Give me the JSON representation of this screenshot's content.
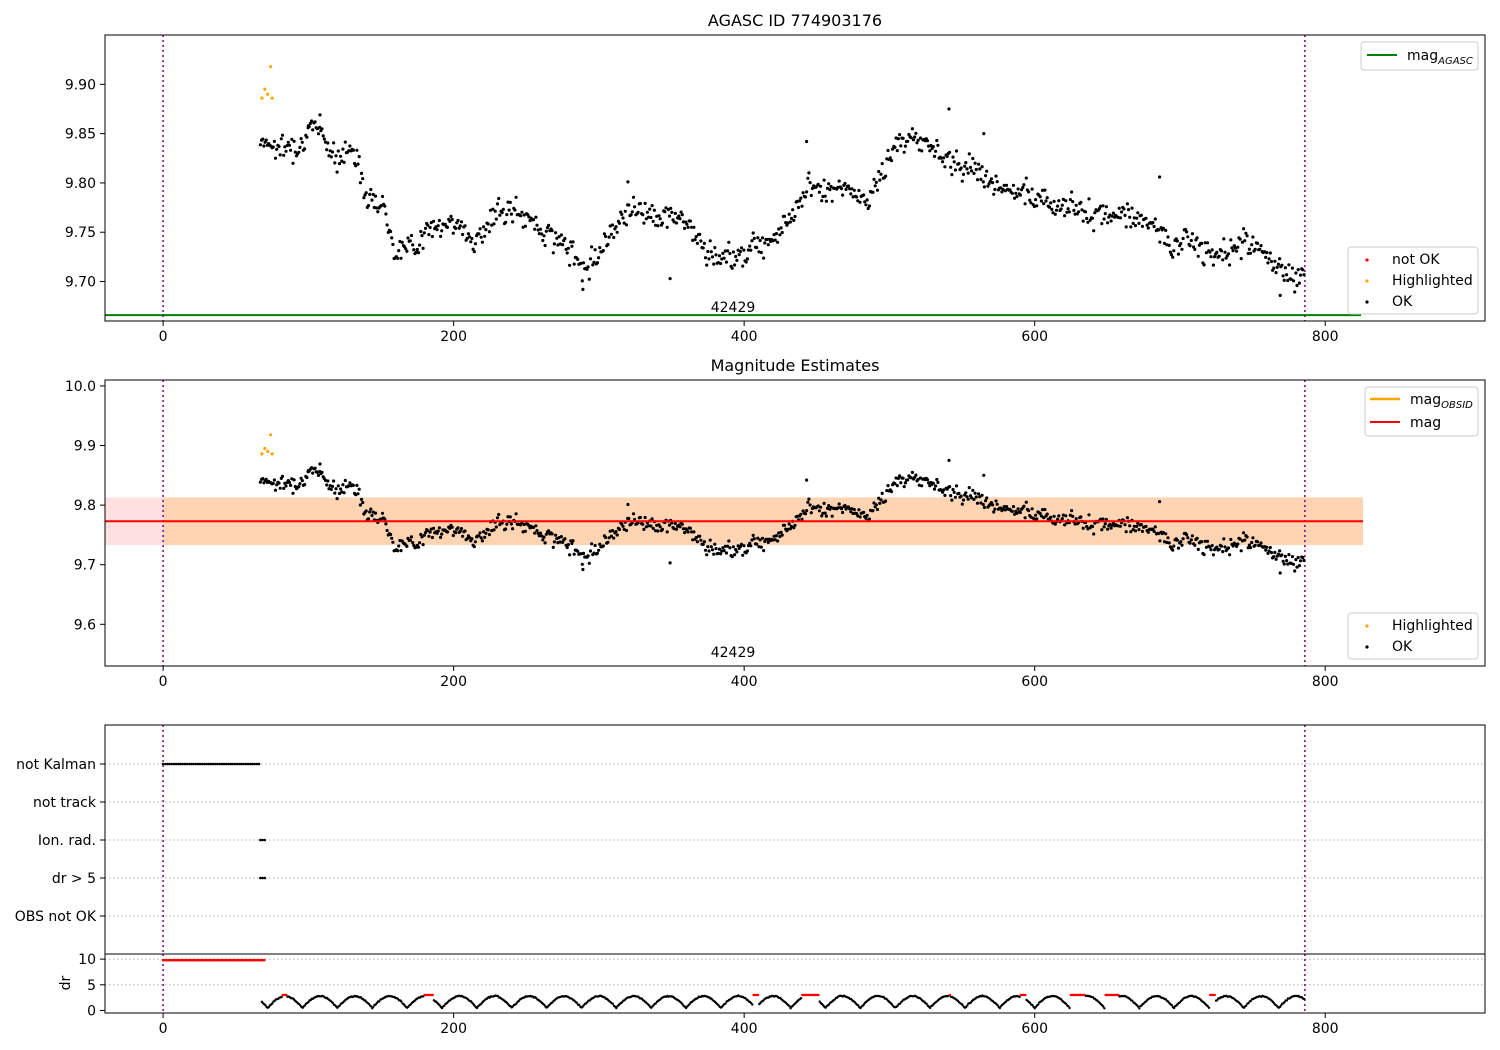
{
  "figure": {
    "title": "AGASC ID 774903176",
    "subtitle": "Magnitude Estimates",
    "obsid_label": "42429"
  },
  "chart_data": [
    {
      "type": "scatter",
      "title": "AGASC ID 774903176",
      "xlim": [
        -40,
        910
      ],
      "ylim": [
        9.66,
        9.95
      ],
      "x_ticks": [
        0,
        200,
        400,
        600,
        800
      ],
      "y_ticks": [
        9.7,
        9.75,
        9.8,
        9.85,
        9.9
      ],
      "y_tick_labels": [
        "9.70",
        "9.75",
        "9.80",
        "9.85",
        "9.90"
      ],
      "vlines": [
        0,
        786
      ],
      "hlines": [
        {
          "name": "mag_AGASC",
          "value": 9.666,
          "color": "#008000"
        }
      ],
      "annotation": {
        "text": "42429",
        "x": 393,
        "y": 9.667
      },
      "legend_lines": [
        {
          "name": "mag",
          "sub": "AGASC",
          "color": "#008000"
        }
      ],
      "legend_points": [
        {
          "name": "not OK",
          "color": "#ff0000"
        },
        {
          "name": "Highlighted",
          "color": "#ffa500"
        },
        {
          "name": "OK",
          "color": "#000000"
        }
      ],
      "highlighted_points": [
        [
          68,
          9.886
        ],
        [
          70,
          9.895
        ],
        [
          72,
          9.89
        ],
        [
          74,
          9.918
        ],
        [
          75,
          9.886
        ]
      ],
      "ok_trend": [
        [
          67,
          9.845
        ],
        [
          80,
          9.835
        ],
        [
          95,
          9.84
        ],
        [
          107,
          9.86
        ],
        [
          120,
          9.82
        ],
        [
          130,
          9.84
        ],
        [
          140,
          9.79
        ],
        [
          152,
          9.775
        ],
        [
          160,
          9.73
        ],
        [
          175,
          9.74
        ],
        [
          190,
          9.76
        ],
        [
          205,
          9.755
        ],
        [
          215,
          9.74
        ],
        [
          230,
          9.77
        ],
        [
          245,
          9.77
        ],
        [
          258,
          9.755
        ],
        [
          270,
          9.745
        ],
        [
          280,
          9.73
        ],
        [
          292,
          9.715
        ],
        [
          300,
          9.73
        ],
        [
          310,
          9.755
        ],
        [
          322,
          9.775
        ],
        [
          335,
          9.77
        ],
        [
          345,
          9.765
        ],
        [
          355,
          9.765
        ],
        [
          362,
          9.76
        ],
        [
          372,
          9.73
        ],
        [
          380,
          9.725
        ],
        [
          392,
          9.725
        ],
        [
          400,
          9.73
        ],
        [
          410,
          9.74
        ],
        [
          420,
          9.745
        ],
        [
          428,
          9.76
        ],
        [
          436,
          9.77
        ],
        [
          445,
          9.8
        ],
        [
          455,
          9.79
        ],
        [
          465,
          9.795
        ],
        [
          475,
          9.79
        ],
        [
          485,
          9.78
        ],
        [
          495,
          9.81
        ],
        [
          505,
          9.84
        ],
        [
          515,
          9.845
        ],
        [
          525,
          9.84
        ],
        [
          535,
          9.83
        ],
        [
          545,
          9.82
        ],
        [
          555,
          9.815
        ],
        [
          565,
          9.81
        ],
        [
          575,
          9.795
        ],
        [
          585,
          9.79
        ],
        [
          595,
          9.785
        ],
        [
          605,
          9.785
        ],
        [
          615,
          9.775
        ],
        [
          625,
          9.78
        ],
        [
          635,
          9.77
        ],
        [
          645,
          9.765
        ],
        [
          655,
          9.77
        ],
        [
          665,
          9.765
        ],
        [
          675,
          9.765
        ],
        [
          685,
          9.755
        ],
        [
          695,
          9.73
        ],
        [
          705,
          9.745
        ],
        [
          715,
          9.73
        ],
        [
          725,
          9.73
        ],
        [
          735,
          9.73
        ],
        [
          745,
          9.74
        ],
        [
          755,
          9.735
        ],
        [
          765,
          9.715
        ],
        [
          775,
          9.705
        ],
        [
          786,
          9.705
        ]
      ],
      "ok_extremes": [
        [
          100,
          9.858
        ],
        [
          108,
          9.869
        ],
        [
          320,
          9.801
        ],
        [
          349,
          9.703
        ],
        [
          289,
          9.692
        ],
        [
          443,
          9.842
        ],
        [
          541,
          9.875
        ],
        [
          565,
          9.85
        ],
        [
          686,
          9.806
        ],
        [
          769,
          9.686
        ]
      ]
    },
    {
      "type": "scatter",
      "title": "Magnitude Estimates",
      "xlim": [
        -40,
        910
      ],
      "ylim": [
        9.53,
        10.01
      ],
      "x_ticks": [
        0,
        200,
        400,
        600,
        800
      ],
      "y_ticks": [
        9.6,
        9.7,
        9.8,
        9.9,
        10.0
      ],
      "y_tick_labels": [
        "9.6",
        "9.7",
        "9.8",
        "9.9",
        "10.0"
      ],
      "vlines": [
        0,
        786
      ],
      "mag": 9.773,
      "mag_band": [
        9.733,
        9.813
      ],
      "mag_obsid_band": [
        9.733,
        9.813
      ],
      "band_x": [
        -40,
        826
      ],
      "obsid_span": [
        0,
        826
      ],
      "annotation": {
        "text": "42429",
        "x": 393,
        "y": 9.54
      },
      "legend_lines": [
        {
          "name": "mag",
          "sub": "OBSID",
          "color": "#ffa500"
        },
        {
          "name": "mag",
          "sub": "",
          "color": "#ff0000"
        }
      ],
      "legend_points": [
        {
          "name": "Highlighted",
          "color": "#ffa500"
        },
        {
          "name": "OK",
          "color": "#000000"
        }
      ]
    },
    {
      "type": "scatter",
      "title": "",
      "xlim": [
        -40,
        910
      ],
      "categories": [
        "not Kalman",
        "not track",
        "Ion. rad.",
        "dr > 5",
        "OBS not OK"
      ],
      "flags": [
        {
          "category": "not Kalman",
          "x_start": 0,
          "x_end": 66
        },
        {
          "category": "not track",
          "x_start": null,
          "x_end": null
        },
        {
          "category": "Ion. rad.",
          "x_start": 67,
          "x_end": 70
        },
        {
          "category": "dr > 5",
          "x_start": 67,
          "x_end": 70
        },
        {
          "category": "OBS not OK",
          "x_start": null,
          "x_end": null
        }
      ],
      "vlines": [
        0,
        786
      ]
    },
    {
      "type": "scatter",
      "title": "",
      "ylabel": "dr",
      "xlim": [
        -40,
        910
      ],
      "ylim": [
        -0.5,
        11
      ],
      "x_ticks": [
        0,
        200,
        400,
        600,
        800
      ],
      "y_ticks": [
        0,
        5,
        10
      ],
      "vlines": [
        0,
        786
      ],
      "saturated": {
        "x_start": 0,
        "x_end": 70,
        "value": 9.8
      },
      "dr_start": 68,
      "dr_end": 786,
      "not_ok_ranges": [
        [
          82,
          85
        ],
        [
          180,
          186
        ],
        [
          406,
          410
        ],
        [
          440,
          452
        ],
        [
          541,
          542
        ],
        [
          590,
          594
        ],
        [
          624,
          635
        ],
        [
          648,
          658
        ],
        [
          720,
          724
        ]
      ]
    }
  ]
}
